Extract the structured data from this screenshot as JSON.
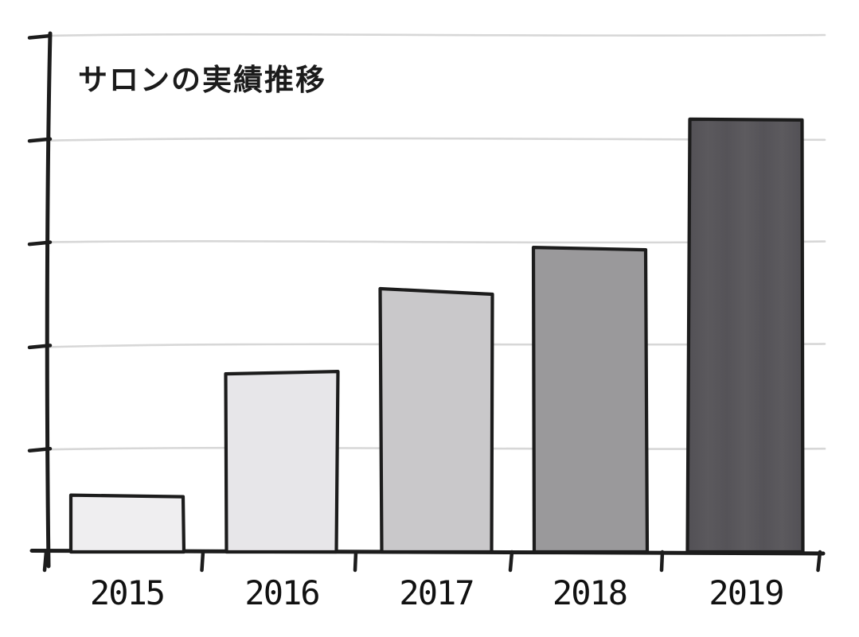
{
  "chart_data": {
    "type": "bar",
    "title": "サロンの実績推移",
    "categories": [
      "2015",
      "2016",
      "2017",
      "2018",
      "2019"
    ],
    "values": [
      0.55,
      1.74,
      2.55,
      2.95,
      4.2
    ],
    "xlabel": "",
    "ylabel": "",
    "ylim": [
      0,
      5
    ],
    "y_tick_step": 1,
    "y_tick_labels": [],
    "grid": "horizontal gridlines, hand-drawn wavy, unlabeled",
    "legend": "none",
    "style": "hand-drawn sketch, black outlines, grayscale bars getting darker each year",
    "bar_colors": [
      "#efeef0",
      "#e7e6e9",
      "#c9c8ca",
      "#9a999b",
      "#565558"
    ],
    "bar_outline_color": "#1c1c1c",
    "axis_color": "#1c1c1c",
    "gridline_color": "#d7d7d7",
    "label_color": "#111111",
    "background_color": "#ffffff"
  }
}
